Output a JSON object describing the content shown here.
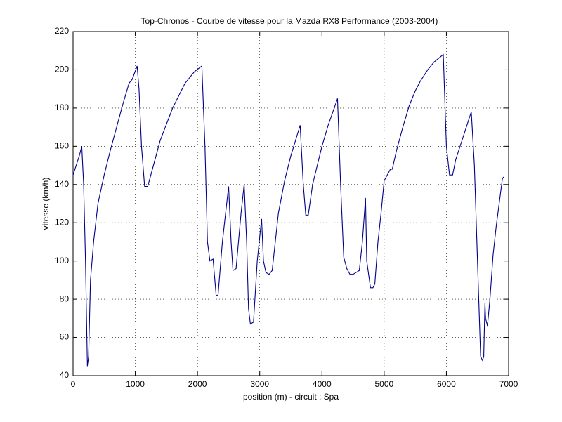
{
  "chart_data": {
    "type": "line",
    "title": "Top-Chronos - Courbe de vitesse pour la Mazda RX8 Performance (2003-2004)",
    "x_label": "position (m) - circuit : Spa",
    "y_label": "vitesse (km/h)",
    "color": "#00008b",
    "grid": true,
    "xlim": [
      0,
      7000
    ],
    "xticks": [
      0,
      1000,
      2000,
      3000,
      4000,
      5000,
      6000,
      7000
    ],
    "ylim": [
      40,
      220
    ],
    "yticks": [
      40,
      60,
      80,
      100,
      120,
      140,
      160,
      180,
      200,
      220
    ],
    "x": [
      0,
      100,
      140,
      170,
      200,
      230,
      250,
      280,
      330,
      400,
      500,
      600,
      700,
      800,
      900,
      950,
      1030,
      1060,
      1100,
      1150,
      1200,
      1250,
      1400,
      1600,
      1800,
      1850,
      1950,
      2070,
      2120,
      2160,
      2200,
      2250,
      2300,
      2330,
      2400,
      2500,
      2540,
      2570,
      2620,
      2700,
      2750,
      2790,
      2820,
      2850,
      2900,
      2960,
      3030,
      3060,
      3100,
      3150,
      3200,
      3300,
      3400,
      3500,
      3650,
      3700,
      3740,
      3780,
      3850,
      4000,
      4100,
      4250,
      4300,
      4350,
      4400,
      4450,
      4500,
      4600,
      4650,
      4700,
      4720,
      4780,
      4820,
      4850,
      4900,
      4950,
      5000,
      5100,
      5130,
      5200,
      5300,
      5400,
      5500,
      5580,
      5620,
      5700,
      5800,
      5950,
      6000,
      6050,
      6100,
      6150,
      6300,
      6400,
      6450,
      6500,
      6550,
      6580,
      6600,
      6620,
      6630,
      6660,
      6700,
      6750,
      6800,
      6900,
      6920
    ],
    "values": [
      145,
      155,
      160,
      140,
      100,
      45,
      50,
      90,
      110,
      130,
      145,
      158,
      170,
      182,
      193,
      195,
      202,
      190,
      160,
      139,
      139,
      145,
      163,
      180,
      193,
      195,
      199,
      202,
      160,
      110,
      100,
      101,
      82,
      82,
      110,
      139,
      110,
      95,
      96,
      125,
      140,
      110,
      75,
      67,
      68,
      100,
      122,
      100,
      94,
      93,
      95,
      125,
      142,
      155,
      171,
      140,
      124,
      124,
      140,
      160,
      171,
      185,
      140,
      102,
      96,
      93,
      93,
      95,
      110,
      133,
      100,
      86,
      86,
      88,
      110,
      125,
      142,
      148,
      148,
      158,
      170,
      181,
      189,
      194,
      196,
      200,
      204,
      208,
      160,
      145,
      145,
      153,
      168,
      178,
      150,
      100,
      50,
      48,
      50,
      78,
      70,
      66,
      80,
      103,
      118,
      143,
      144
    ]
  }
}
